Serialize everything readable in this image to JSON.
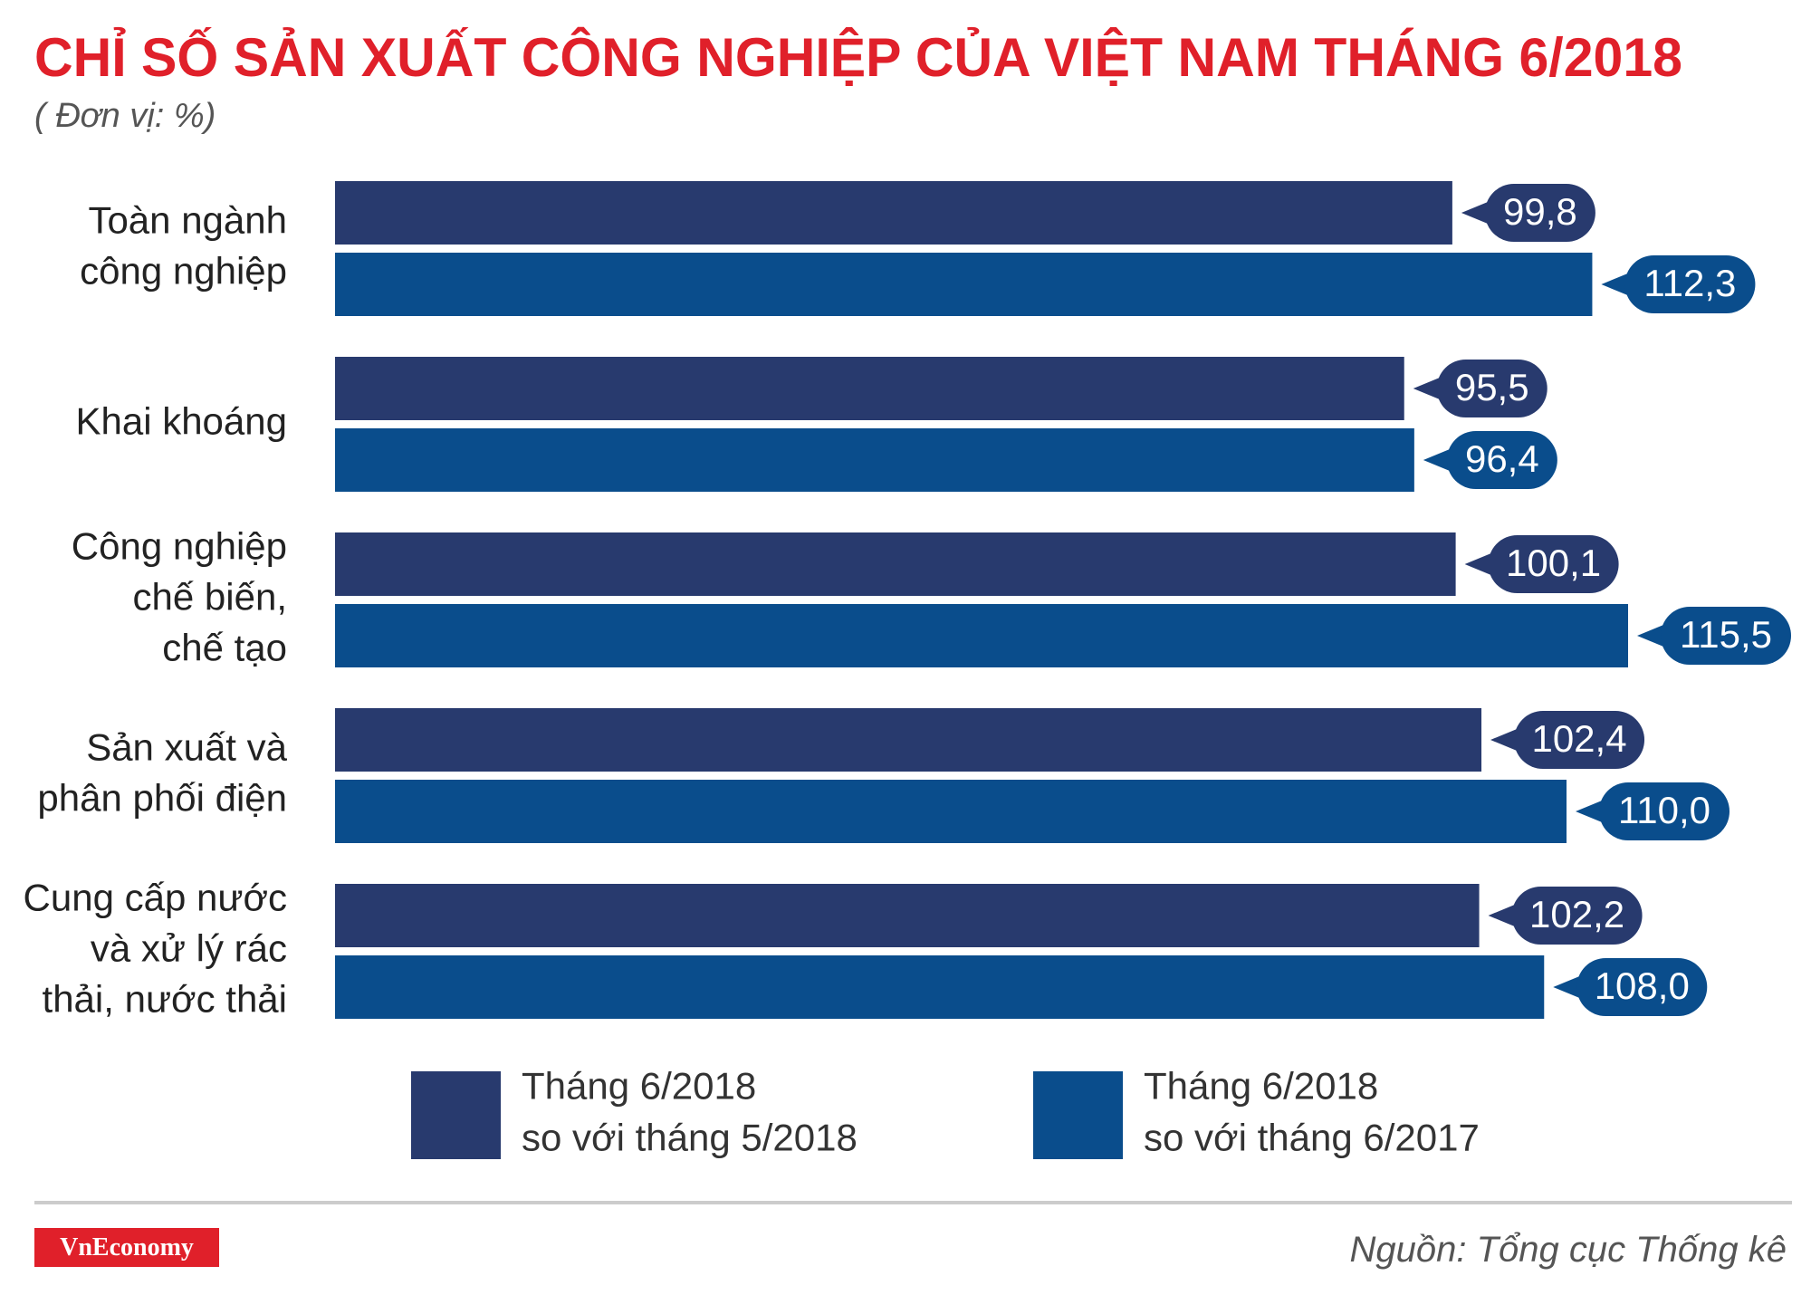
{
  "chart_data": {
    "type": "hbar",
    "title": "CHỈ SỐ SẢN XUẤT CÔNG NGHIỆP CỦA VIỆT NAM THÁNG 6/2018",
    "subtitle": "( Đơn vị: %)",
    "categories": [
      "Toàn ngành\ncông nghiệp",
      "Khai khoáng",
      "Công nghiệp\nchế biến,\nchế tạo",
      "Sản xuất và\nphân phối điện",
      "Cung cấp nước\nvà xử lý rác\nthải, nước thải"
    ],
    "series": [
      {
        "name": "Tháng 6/2018\nso với tháng 5/2018",
        "color": "#283a6e",
        "values": [
          99.8,
          95.5,
          100.1,
          102.4,
          102.2
        ],
        "value_labels": [
          "99,8",
          "95,5",
          "100,1",
          "102,4",
          "102,2"
        ]
      },
      {
        "name": "Tháng 6/2018\nso với tháng 6/2017",
        "color": "#0a4d8c",
        "values": [
          112.3,
          96.4,
          115.5,
          110.0,
          108.0
        ],
        "value_labels": [
          "112,3",
          "96,4",
          "115,5",
          "110,0",
          "108,0"
        ]
      }
    ],
    "logo": "VnEconomy",
    "source": "Nguồn: Tổng cục Thống kê"
  }
}
